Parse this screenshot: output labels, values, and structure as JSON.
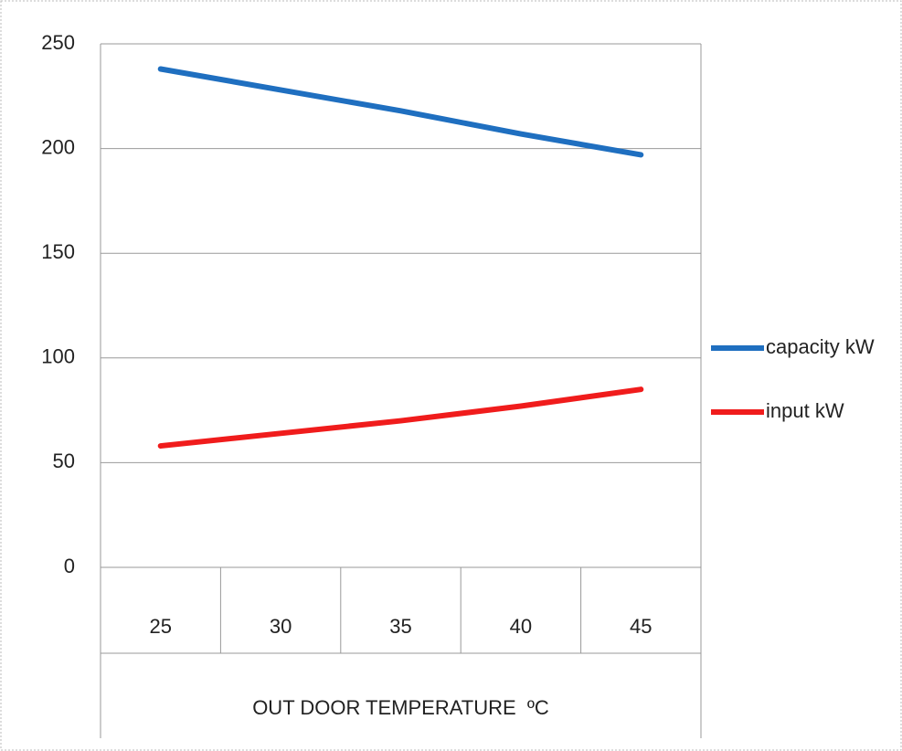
{
  "chart_data": {
    "type": "line",
    "x_label": "OUT DOOR TEMPERATURE  ºC",
    "categories": [
      "25",
      "30",
      "35",
      "40",
      "45"
    ],
    "series": [
      {
        "name": "capacity kW",
        "color": "#1f6fc0",
        "values": [
          238,
          228,
          218,
          207,
          197
        ]
      },
      {
        "name": "input kW",
        "color": "#f01c1c",
        "values": [
          58,
          64,
          70,
          77,
          85
        ]
      }
    ],
    "ylim": [
      0,
      250
    ],
    "yticks": [
      0,
      50,
      100,
      150,
      200,
      250
    ],
    "grid": true,
    "legend": "right"
  }
}
